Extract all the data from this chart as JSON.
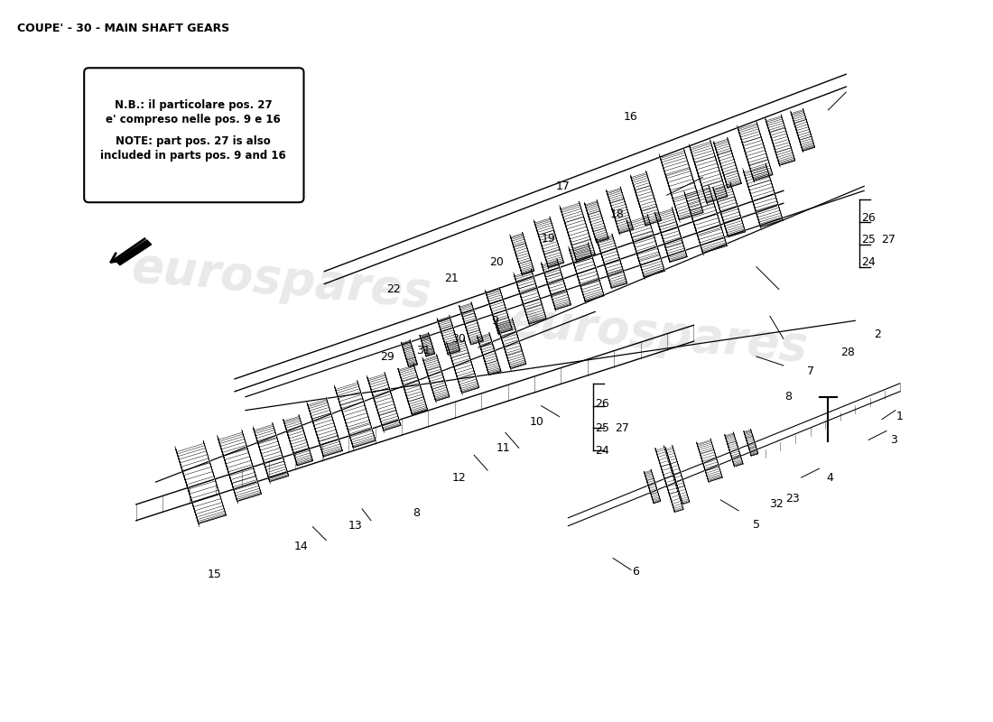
{
  "title": "COUPE' - 30 - MAIN SHAFT GEARS",
  "title_fontsize": 9,
  "bg_color": "#ffffff",
  "watermark_color": "#c8c8c8",
  "note_text_line1": "N.B.: il particolare pos. 27",
  "note_text_line2": "e' compreso nelle pos. 9 e 16",
  "note_text_line3": "NOTE: part pos. 27 is also",
  "note_text_line4": "included in parts pos. 9 and 16"
}
